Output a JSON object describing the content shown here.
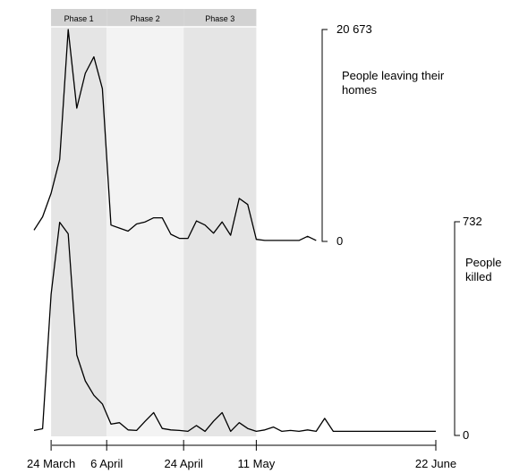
{
  "chart_data": {
    "type": "line",
    "phases": [
      {
        "label": "Phase 1",
        "start": "2020-03-24",
        "end": "2020-04-06",
        "color": "#e5e5e5"
      },
      {
        "label": "Phase 2",
        "start": "2020-04-06",
        "end": "2020-04-24",
        "color": "#f3f3f3"
      },
      {
        "label": "Phase 3",
        "start": "2020-04-24",
        "end": "2020-05-11",
        "color": "#e5e5e5"
      }
    ],
    "x_ticks": [
      {
        "date": "2020-03-24",
        "label": "24 March"
      },
      {
        "date": "2020-04-06",
        "label": "6 April"
      },
      {
        "date": "2020-04-24",
        "label": "24 April"
      },
      {
        "date": "2020-05-11",
        "label": "11 May"
      },
      {
        "date": "2020-06-22",
        "label": "22 June"
      }
    ],
    "xlim": [
      "2020-03-20",
      "2020-06-22"
    ],
    "series": [
      {
        "name": "People leaving their homes",
        "y_axis_labels": [
          "20 673",
          "0"
        ],
        "ylim": [
          0,
          20673
        ],
        "x": [
          "2020-03-20",
          "2020-03-22",
          "2020-03-24",
          "2020-03-26",
          "2020-03-28",
          "2020-03-30",
          "2020-04-01",
          "2020-04-03",
          "2020-04-05",
          "2020-04-07",
          "2020-04-09",
          "2020-04-11",
          "2020-04-13",
          "2020-04-15",
          "2020-04-17",
          "2020-04-19",
          "2020-04-21",
          "2020-04-23",
          "2020-04-25",
          "2020-04-27",
          "2020-04-29",
          "2020-05-01",
          "2020-05-03",
          "2020-05-05",
          "2020-05-07",
          "2020-05-09",
          "2020-05-11",
          "2020-05-13",
          "2020-05-15",
          "2020-05-17",
          "2020-05-19",
          "2020-05-21",
          "2020-05-23",
          "2020-05-25"
        ],
        "values": [
          1100,
          2400,
          4700,
          8000,
          20673,
          13000,
          16400,
          18000,
          14900,
          1600,
          1300,
          1000,
          1700,
          1900,
          2300,
          2300,
          700,
          300,
          300,
          2000,
          1600,
          800,
          1900,
          600,
          4200,
          3600,
          200,
          100,
          100,
          100,
          100,
          100,
          500,
          100
        ]
      },
      {
        "name": "People killed",
        "y_axis_labels": [
          "732",
          "0"
        ],
        "ylim": [
          0,
          732
        ],
        "x": [
          "2020-03-20",
          "2020-03-22",
          "2020-03-24",
          "2020-03-26",
          "2020-03-28",
          "2020-03-30",
          "2020-04-01",
          "2020-04-03",
          "2020-04-05",
          "2020-04-07",
          "2020-04-09",
          "2020-04-11",
          "2020-04-13",
          "2020-04-15",
          "2020-04-17",
          "2020-04-19",
          "2020-04-21",
          "2020-04-23",
          "2020-04-25",
          "2020-04-27",
          "2020-04-29",
          "2020-05-01",
          "2020-05-03",
          "2020-05-05",
          "2020-05-07",
          "2020-05-09",
          "2020-05-11",
          "2020-05-13",
          "2020-05-15",
          "2020-05-17",
          "2020-05-19",
          "2020-05-21",
          "2020-05-23",
          "2020-05-25",
          "2020-05-27",
          "2020-05-29",
          "2020-06-01",
          "2020-06-04",
          "2020-06-07",
          "2020-06-10",
          "2020-06-13",
          "2020-06-16",
          "2020-06-19",
          "2020-06-22"
        ],
        "values": [
          8,
          14,
          480,
          730,
          690,
          270,
          180,
          130,
          100,
          30,
          35,
          10,
          8,
          40,
          70,
          15,
          10,
          8,
          5,
          25,
          5,
          40,
          70,
          5,
          35,
          15,
          5,
          10,
          20,
          5,
          8,
          5,
          10,
          5,
          50,
          5,
          5,
          5,
          5,
          5,
          5,
          5,
          5,
          5
        ]
      }
    ]
  }
}
